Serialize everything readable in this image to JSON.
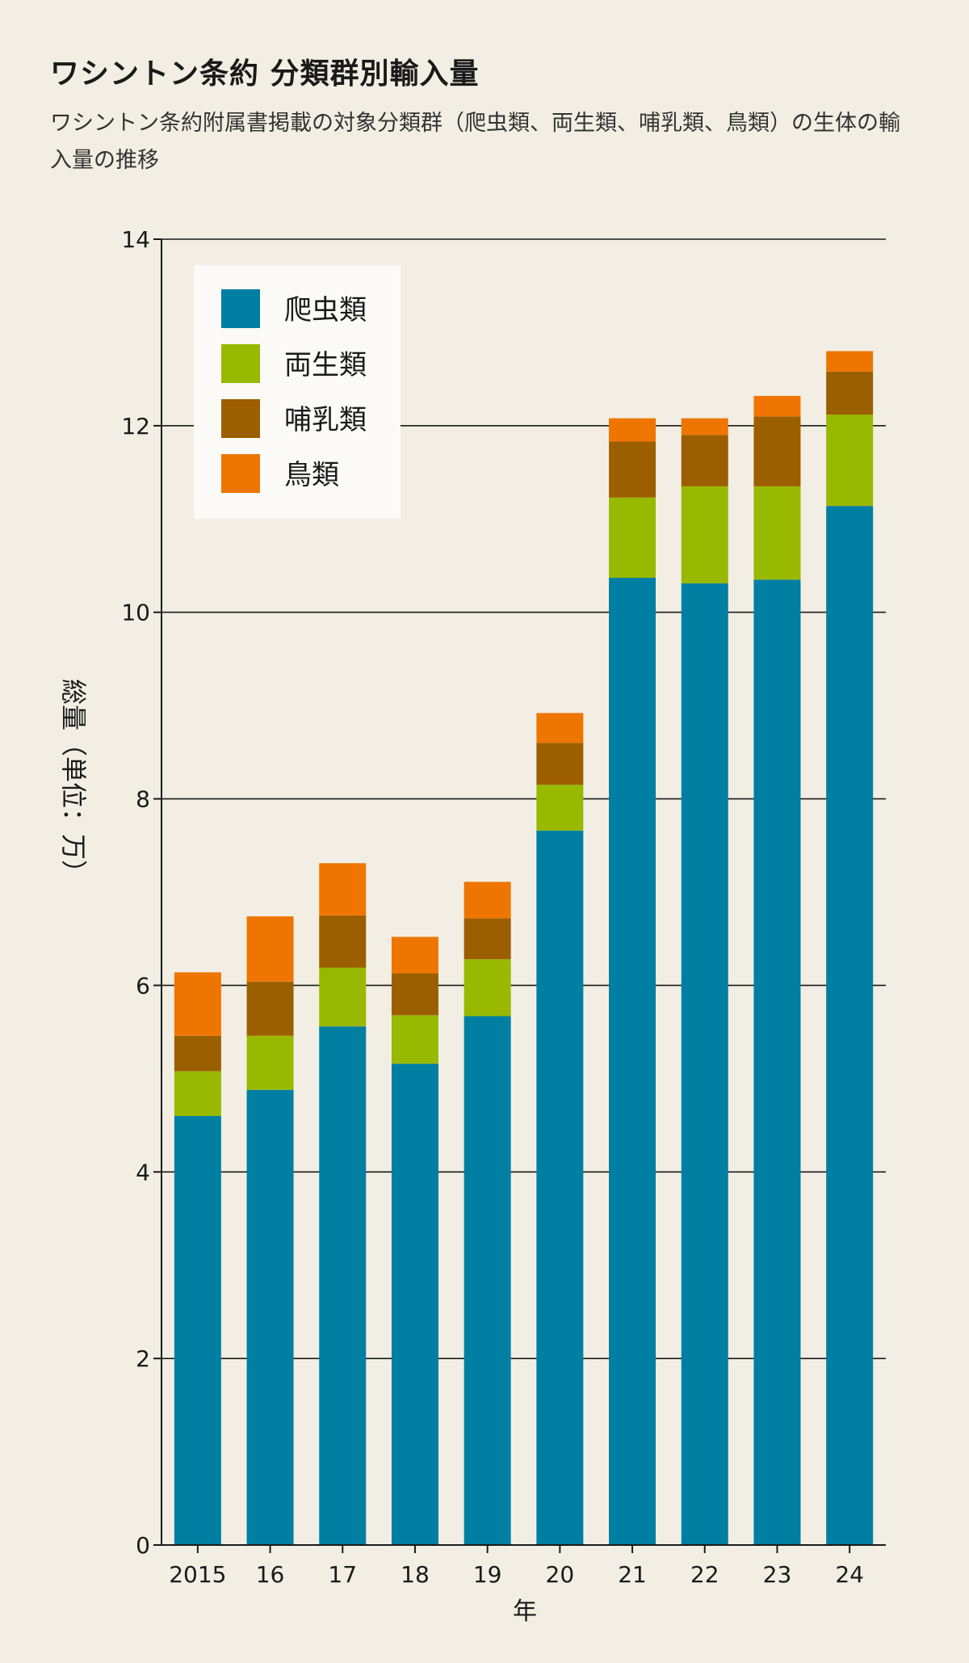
{
  "header": {
    "title": "ワシントン条約 分類群別輸入量",
    "subtitle": "ワシントン条約附属書掲載の対象分類群（爬虫類、両生類、哺乳類、鳥類）の生体の輸入量の推移"
  },
  "chart_data": {
    "type": "bar",
    "stacked": true,
    "categories": [
      "2015",
      "16",
      "17",
      "18",
      "19",
      "20",
      "21",
      "22",
      "23",
      "24"
    ],
    "series": [
      {
        "name": "爬虫類",
        "color": "#007fa3",
        "values": [
          4.6,
          4.88,
          5.56,
          5.16,
          5.67,
          7.66,
          10.37,
          10.31,
          10.35,
          11.14
        ]
      },
      {
        "name": "両生類",
        "color": "#99b900",
        "values": [
          0.48,
          0.58,
          0.63,
          0.52,
          0.61,
          0.49,
          0.86,
          1.04,
          1.0,
          0.98
        ]
      },
      {
        "name": "哺乳類",
        "color": "#9c5f00",
        "values": [
          0.38,
          0.58,
          0.56,
          0.45,
          0.44,
          0.45,
          0.6,
          0.55,
          0.75,
          0.46
        ]
      },
      {
        "name": "鳥類",
        "color": "#ee7600",
        "values": [
          0.68,
          0.7,
          0.56,
          0.39,
          0.39,
          0.32,
          0.25,
          0.18,
          0.22,
          0.22
        ]
      }
    ],
    "ylabel": "総量（単位：万）",
    "xlabel": "年",
    "ylim": [
      0,
      14
    ],
    "yticks": [
      0,
      2,
      4,
      6,
      8,
      10,
      12,
      14
    ],
    "grid": true,
    "legend_position": "top-left"
  }
}
